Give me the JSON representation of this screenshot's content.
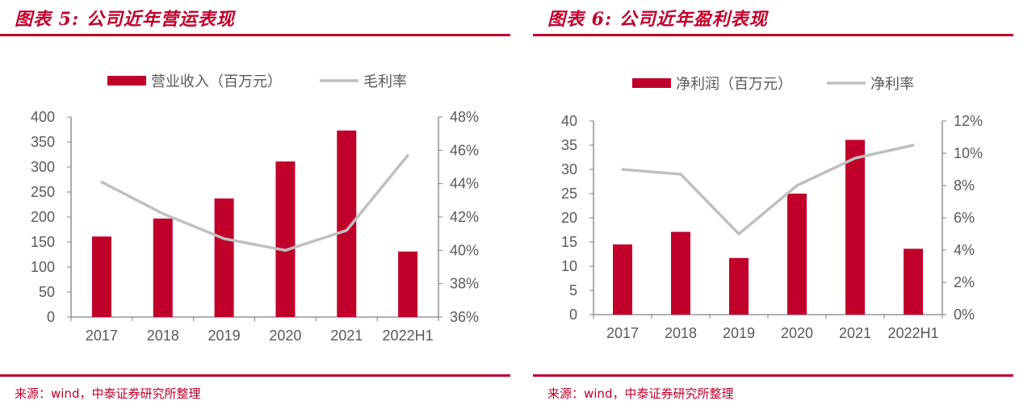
{
  "colors": {
    "accent": "#c0002a",
    "bar": "#c0002a",
    "line": "#bfbfbf",
    "axis": "#808080",
    "text": "#595959"
  },
  "panels": [
    {
      "title": "图表 5:  公司近年营运表现",
      "source": "来源：wind，中泰证券研究所整理"
    },
    {
      "title": "图表 6:  公司近年盈利表现",
      "source": "来源：wind，中泰证券研究所整理"
    }
  ],
  "chart_data": [
    {
      "type": "bar+line",
      "categories": [
        "2017",
        "2018",
        "2019",
        "2020",
        "2021",
        "2022H1"
      ],
      "series": [
        {
          "name": "营业收入（百万元）",
          "type": "bar",
          "axis": "left",
          "values": [
            161,
            197,
            237,
            311,
            373,
            131
          ]
        },
        {
          "name": "毛利率",
          "type": "line",
          "axis": "right",
          "values": [
            44.1,
            42.2,
            40.7,
            40.0,
            41.2,
            45.7
          ]
        }
      ],
      "y_left": {
        "range": [
          0,
          400
        ],
        "ticks": [
          "0",
          "50",
          "100",
          "150",
          "200",
          "250",
          "300",
          "350",
          "400"
        ]
      },
      "y_right": {
        "range": [
          36,
          48
        ],
        "ticks": [
          "36%",
          "38%",
          "40%",
          "42%",
          "44%",
          "46%",
          "48%"
        ]
      },
      "legend": "top",
      "grid": false
    },
    {
      "type": "bar+line",
      "categories": [
        "2017",
        "2018",
        "2019",
        "2020",
        "2021",
        "2022H1"
      ],
      "series": [
        {
          "name": "净利润（百万元）",
          "type": "bar",
          "axis": "left",
          "values": [
            14.5,
            17.1,
            11.7,
            25.0,
            36.1,
            13.6
          ]
        },
        {
          "name": "净利率",
          "type": "line",
          "axis": "right",
          "values": [
            9.0,
            8.7,
            5.0,
            8.0,
            9.7,
            10.5
          ]
        }
      ],
      "y_left": {
        "range": [
          0,
          40
        ],
        "ticks": [
          "0",
          "5",
          "10",
          "15",
          "20",
          "25",
          "30",
          "35",
          "40"
        ]
      },
      "y_right": {
        "range": [
          0,
          12
        ],
        "ticks": [
          "0%",
          "2%",
          "4%",
          "6%",
          "8%",
          "10%",
          "12%"
        ]
      },
      "legend": "top",
      "grid": false
    }
  ]
}
